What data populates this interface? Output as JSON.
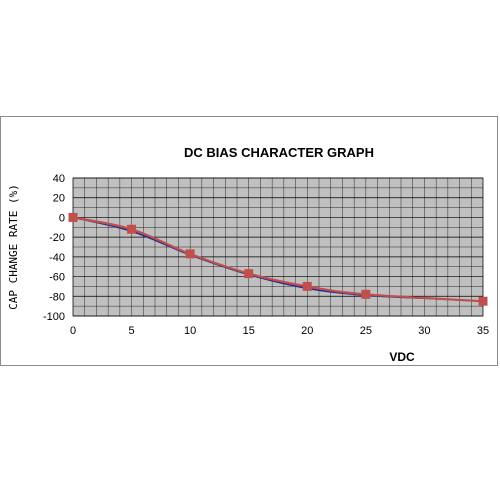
{
  "chart_data": {
    "type": "line",
    "title": "DC BIAS CHARACTER GRAPH",
    "xlabel": "VDC",
    "ylabel": "CAP CHANGE RATE (%)",
    "xlim": [
      0,
      35
    ],
    "ylim": [
      -100,
      40
    ],
    "x_ticks": [
      "0",
      "5",
      "10",
      "15",
      "20",
      "25",
      "30",
      "35"
    ],
    "y_ticks": [
      "40",
      "20",
      "0",
      "-20",
      "-40",
      "-60",
      "-80",
      "-100"
    ],
    "grid": true,
    "legend": "none",
    "series": [
      {
        "color": "#2b2b8c",
        "marker": "none",
        "x": [
          0,
          5,
          10,
          15,
          20,
          25,
          30,
          35
        ],
        "y": [
          0,
          -14,
          -38,
          -58,
          -72,
          -79,
          -82,
          -85
        ]
      },
      {
        "color": "#c0504d",
        "marker": "square",
        "x": [
          0,
          5,
          10,
          15,
          20,
          25,
          35
        ],
        "y": [
          0,
          -12,
          -37,
          -57,
          -70,
          -78,
          -85
        ]
      }
    ]
  },
  "colors": {
    "plot_background": "#c0c0c0",
    "grid": "#000000",
    "frame_border": "#8c8c8c"
  }
}
